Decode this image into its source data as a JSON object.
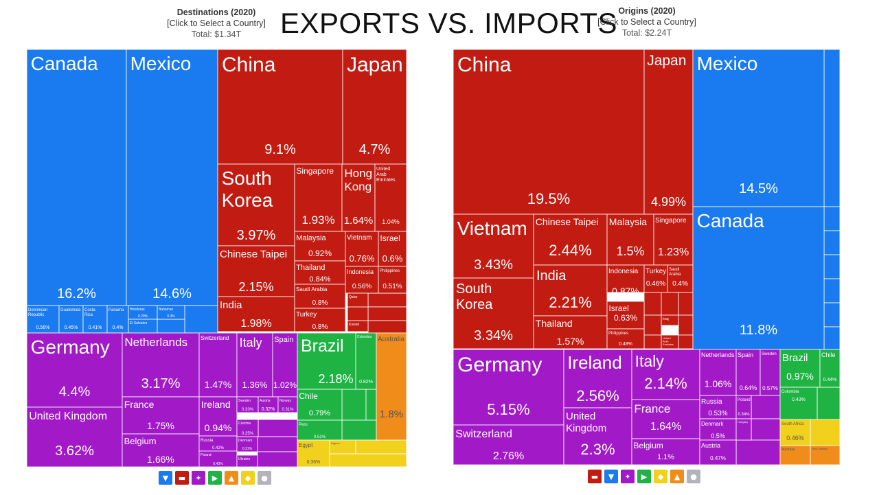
{
  "title": "EXPORTS VS. IMPORTS",
  "colors": {
    "americas": "#1a7af0",
    "asia": "#c21b12",
    "europe": "#a219c8",
    "south_america": "#1fb344",
    "oceania": "#f08c1a",
    "africa": "#f2d11c",
    "other": "#b0b4bb"
  },
  "exports": {
    "header": {
      "title": "Destinations (2020)",
      "link": "[Click to Select a Country]",
      "total": "Total: $1.34T"
    },
    "category_icons": [
      {
        "name": "americas-north-icon",
        "color": "#1a7af0",
        "glyph": "▼"
      },
      {
        "name": "asia-icon",
        "color": "#c21b12",
        "glyph": "▬"
      },
      {
        "name": "europe-icon",
        "color": "#a219c8",
        "glyph": "✦"
      },
      {
        "name": "south-america-icon",
        "color": "#1fb344",
        "glyph": "▶"
      },
      {
        "name": "oceania-icon",
        "color": "#f08c1a",
        "glyph": "▲"
      },
      {
        "name": "africa-icon",
        "color": "#f2d11c",
        "glyph": "◆"
      },
      {
        "name": "other-icon",
        "color": "#b0b4bb",
        "glyph": "●"
      }
    ]
  },
  "imports": {
    "header": {
      "title": "Origins (2020)",
      "link": "[Click to Select a Country]",
      "total": "Total: $2.24T"
    },
    "category_icons": [
      {
        "name": "asia-icon",
        "color": "#c21b12",
        "glyph": "▬"
      },
      {
        "name": "americas-north-icon",
        "color": "#1a7af0",
        "glyph": "▼"
      },
      {
        "name": "europe-icon",
        "color": "#a219c8",
        "glyph": "✦"
      },
      {
        "name": "south-america-icon",
        "color": "#1fb344",
        "glyph": "▶"
      },
      {
        "name": "africa-icon",
        "color": "#f2d11c",
        "glyph": "◆"
      },
      {
        "name": "oceania-icon",
        "color": "#f08c1a",
        "glyph": "▲"
      },
      {
        "name": "other-icon",
        "color": "#b0b4bb",
        "glyph": "●"
      }
    ]
  },
  "chart_data": [
    {
      "type": "treemap",
      "title": "Destinations (2020)",
      "total": "$1.34T",
      "units": "percent of total exports",
      "regions": [
        {
          "region": "americas",
          "items": [
            {
              "name": "Canada",
              "value": 16.2
            },
            {
              "name": "Mexico",
              "value": 14.6
            },
            {
              "name": "Dominican Republic",
              "value": 0.56
            },
            {
              "name": "Guatemala",
              "value": 0.45
            },
            {
              "name": "Costa Rica",
              "value": 0.41
            },
            {
              "name": "Panama",
              "value": 0.4
            },
            {
              "name": "Honduras",
              "value": 0.29
            },
            {
              "name": "El Salvador",
              "value": null
            },
            {
              "name": "Bahamas",
              "value": 0.3
            }
          ]
        },
        {
          "region": "asia",
          "items": [
            {
              "name": "China",
              "value": 9.1
            },
            {
              "name": "Japan",
              "value": 4.7
            },
            {
              "name": "South Korea",
              "value": 3.97
            },
            {
              "name": "Singapore",
              "value": 1.93
            },
            {
              "name": "Hong Kong",
              "value": 1.64
            },
            {
              "name": "United Arab Emirates",
              "value": 1.04
            },
            {
              "name": "Chinese Taipei",
              "value": 2.15
            },
            {
              "name": "Malaysia",
              "value": 0.92
            },
            {
              "name": "Vietnam",
              "value": 0.76
            },
            {
              "name": "Israel",
              "value": 0.6
            },
            {
              "name": "Thailand",
              "value": 0.84
            },
            {
              "name": "Indonesia",
              "value": 0.56
            },
            {
              "name": "Philippines",
              "value": 0.51
            },
            {
              "name": "India",
              "value": 1.98
            },
            {
              "name": "Saudi Arabia",
              "value": 0.8
            },
            {
              "name": "Qatar",
              "value": null
            },
            {
              "name": "Turkey",
              "value": 0.8
            },
            {
              "name": "Kuwait",
              "value": null
            }
          ]
        },
        {
          "region": "europe",
          "items": [
            {
              "name": "Germany",
              "value": 4.4
            },
            {
              "name": "Netherlands",
              "value": 3.17
            },
            {
              "name": "Switzerland",
              "value": 1.47
            },
            {
              "name": "Italy",
              "value": 1.36
            },
            {
              "name": "Spain",
              "value": 1.02
            },
            {
              "name": "United Kingdom",
              "value": 3.62
            },
            {
              "name": "France",
              "value": 1.75
            },
            {
              "name": "Belgium",
              "value": 1.66
            },
            {
              "name": "Ireland",
              "value": 0.94
            },
            {
              "name": "Sweden",
              "value": 0.33
            },
            {
              "name": "Austria",
              "value": 0.32
            },
            {
              "name": "Norway",
              "value": 0.31
            },
            {
              "name": "Czechia",
              "value": 0.25
            },
            {
              "name": "Russia",
              "value": 0.42
            },
            {
              "name": "Denmark",
              "value": 0.31
            },
            {
              "name": "Poland",
              "value": 0.43
            },
            {
              "name": "Ukraine",
              "value": null
            }
          ]
        },
        {
          "region": "south_america",
          "items": [
            {
              "name": "Brazil",
              "value": 2.18
            },
            {
              "name": "Colombia",
              "value": 0.82
            },
            {
              "name": "Chile",
              "value": 0.79
            },
            {
              "name": "Peru",
              "value": 0.51
            }
          ]
        },
        {
          "region": "oceania",
          "items": [
            {
              "name": "Australia",
              "value": 1.8
            }
          ]
        },
        {
          "region": "africa",
          "items": [
            {
              "name": "Egypt",
              "value": 0.36
            },
            {
              "name": "Nigeria",
              "value": null
            }
          ]
        }
      ]
    },
    {
      "type": "treemap",
      "title": "Origins (2020)",
      "total": "$2.24T",
      "units": "percent of total imports",
      "regions": [
        {
          "region": "asia",
          "items": [
            {
              "name": "China",
              "value": 19.5
            },
            {
              "name": "Japan",
              "value": 4.99
            },
            {
              "name": "Vietnam",
              "value": 3.43
            },
            {
              "name": "Chinese Taipei",
              "value": 2.44
            },
            {
              "name": "Malaysia",
              "value": 1.5
            },
            {
              "name": "Singapore",
              "value": 1.23
            },
            {
              "name": "South Korea",
              "value": 3.34
            },
            {
              "name": "India",
              "value": 2.21
            },
            {
              "name": "Thailand",
              "value": 1.57
            },
            {
              "name": "Indonesia",
              "value": 0.87
            },
            {
              "name": "Turkey",
              "value": 0.46
            },
            {
              "name": "Saudi Arabia",
              "value": 0.4
            },
            {
              "name": "Israel",
              "value": 0.63
            },
            {
              "name": "Philippines",
              "value": 0.48
            },
            {
              "name": "Iraq",
              "value": null
            },
            {
              "name": "United Arab Emirates",
              "value": null
            }
          ]
        },
        {
          "region": "americas",
          "items": [
            {
              "name": "Mexico",
              "value": 14.5
            },
            {
              "name": "Canada",
              "value": 11.8
            }
          ]
        },
        {
          "region": "europe",
          "items": [
            {
              "name": "Germany",
              "value": 5.15
            },
            {
              "name": "Ireland",
              "value": 2.56
            },
            {
              "name": "Italy",
              "value": 2.14
            },
            {
              "name": "Netherlands",
              "value": 1.06
            },
            {
              "name": "Spain",
              "value": 0.64
            },
            {
              "name": "Sweden",
              "value": 0.57
            },
            {
              "name": "Switzerland",
              "value": 2.76
            },
            {
              "name": "United Kingdom",
              "value": 2.3
            },
            {
              "name": "France",
              "value": 1.64
            },
            {
              "name": "Belgium",
              "value": 1.1
            },
            {
              "name": "Russia",
              "value": 0.53
            },
            {
              "name": "Denmark",
              "value": 0.5
            },
            {
              "name": "Austria",
              "value": 0.47
            },
            {
              "name": "Poland",
              "value": 0.34
            },
            {
              "name": "Hungary",
              "value": null
            }
          ]
        },
        {
          "region": "south_america",
          "items": [
            {
              "name": "Brazil",
              "value": 0.97
            },
            {
              "name": "Chile",
              "value": 0.44
            },
            {
              "name": "Colombia",
              "value": 0.43
            }
          ]
        },
        {
          "region": "africa",
          "items": [
            {
              "name": "South Africa",
              "value": 0.46
            },
            {
              "name": "Israel",
              "value": null
            }
          ]
        },
        {
          "region": "oceania",
          "items": [
            {
              "name": "Australia",
              "value": null
            },
            {
              "name": "New Zealand",
              "value": null
            }
          ]
        }
      ]
    }
  ]
}
